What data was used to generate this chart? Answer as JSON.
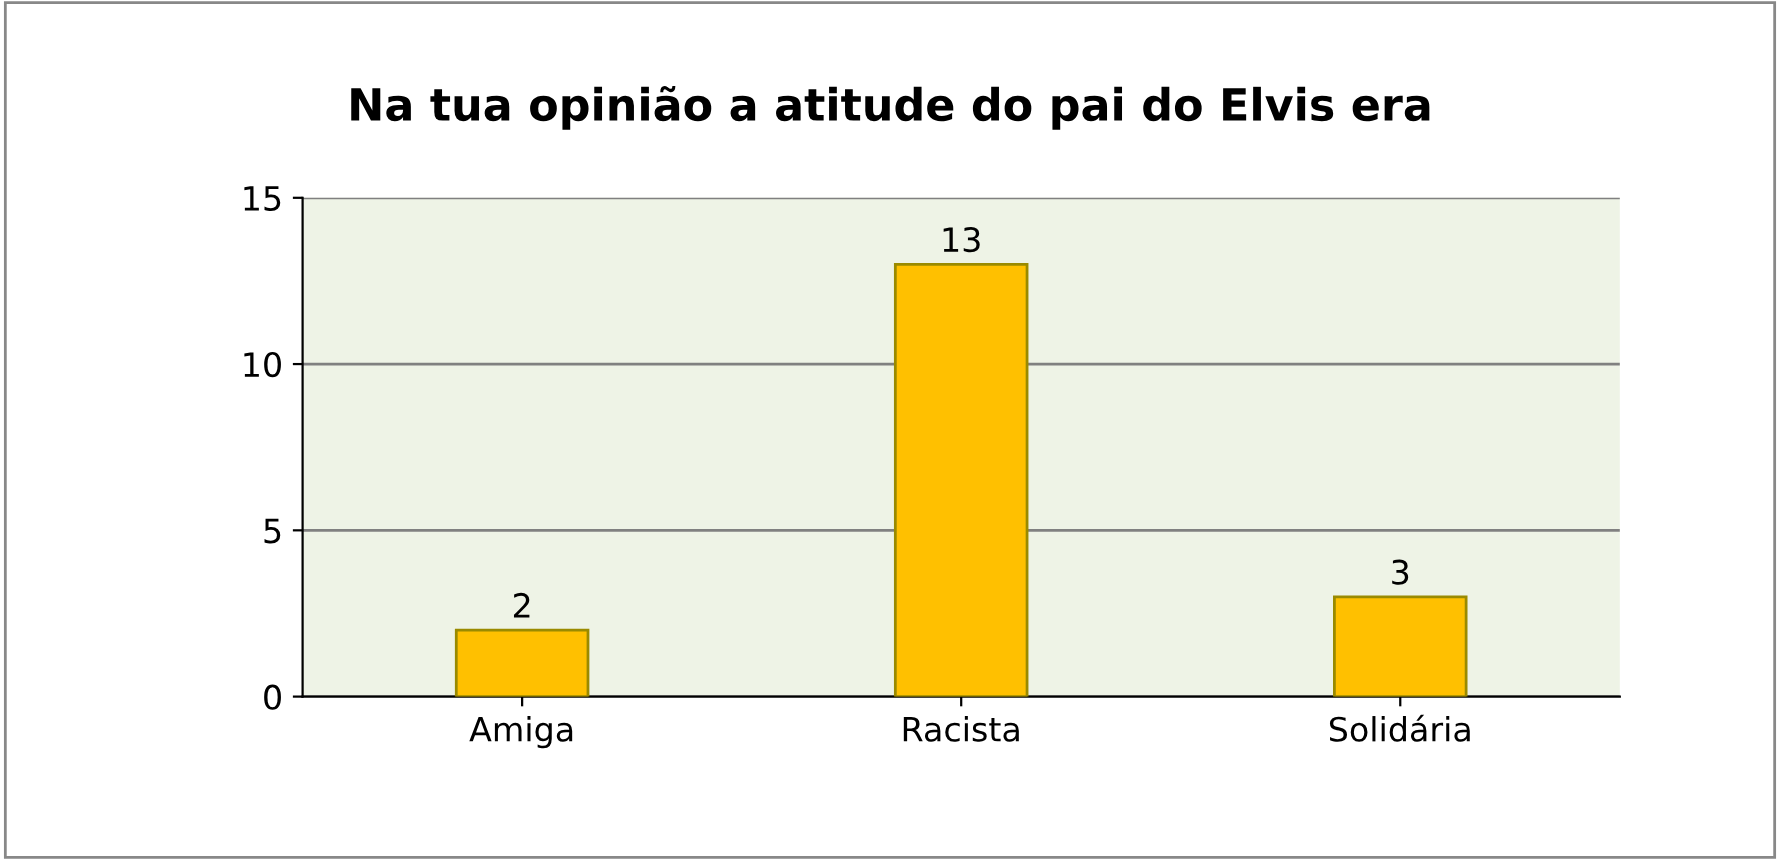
{
  "chart_data": {
    "type": "bar",
    "title": "Na tua opinião a atitude do pai do Elvis era",
    "categories": [
      "Amiga",
      "Racista",
      "Solidária"
    ],
    "values": [
      2,
      13,
      3
    ],
    "color": "#ffc000",
    "ylim": [
      0,
      15
    ],
    "yticks": [
      0,
      5,
      10,
      15
    ],
    "grid": "y",
    "data_labels": true
  }
}
